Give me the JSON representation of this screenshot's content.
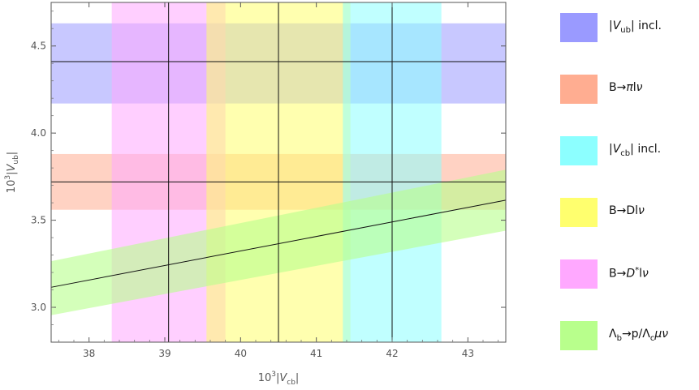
{
  "chart_data": {
    "type": "band-plot",
    "xlabel_parts": [
      "10",
      "3",
      "|V",
      "cb",
      "|"
    ],
    "ylabel_parts": [
      "10",
      "3",
      "|V",
      "ub",
      "|"
    ],
    "xlim": [
      37.5,
      43.5
    ],
    "ylim": [
      2.8,
      4.75
    ],
    "xticks": [
      38,
      39,
      40,
      41,
      42,
      43
    ],
    "yticks": [
      3.0,
      3.5,
      4.0,
      4.5
    ],
    "ytick_labels": [
      "3.0",
      "3.5",
      "4.0",
      "4.5"
    ],
    "horizontal_bands": [
      {
        "id": "vub-incl",
        "center": 4.41,
        "low": 4.17,
        "high": 4.63,
        "color": "#9a9aff"
      },
      {
        "id": "b-pi-l-nu",
        "center": 3.72,
        "low": 3.56,
        "high": 3.88,
        "color": "#ffad91"
      }
    ],
    "vertical_bands": [
      {
        "id": "b-dstar-l-nu",
        "center": 39.05,
        "low": 38.3,
        "high": 39.8,
        "color": "#ffa8ff"
      },
      {
        "id": "b-d-l-nu",
        "center": 40.5,
        "low": 39.55,
        "high": 41.45,
        "color": "#ffff6e"
      },
      {
        "id": "vcb-incl",
        "center": 42.0,
        "low": 41.35,
        "high": 42.65,
        "color": "#8cffff"
      }
    ],
    "diagonal_band": {
      "id": "lambda-b",
      "color": "#b8ff8c",
      "x": [
        37.5,
        43.5
      ],
      "center": [
        3.115,
        3.615
      ],
      "low": [
        2.955,
        3.44
      ],
      "high": [
        3.265,
        3.79
      ]
    },
    "legend": [
      {
        "color": "#9a9aff",
        "parts": [
          [
            "t",
            "|"
          ],
          [
            "i",
            "V"
          ],
          [
            "sub",
            "ub"
          ],
          [
            "t",
            "| incl."
          ]
        ]
      },
      {
        "color": "#ffad91",
        "parts": [
          [
            "t",
            "B→"
          ],
          [
            "i",
            "π"
          ],
          [
            "t",
            "l"
          ],
          [
            "i",
            "ν"
          ]
        ]
      },
      {
        "color": "#8cffff",
        "parts": [
          [
            "t",
            "|"
          ],
          [
            "i",
            "V"
          ],
          [
            "sub",
            "cb"
          ],
          [
            "t",
            "| incl."
          ]
        ]
      },
      {
        "color": "#ffff6e",
        "parts": [
          [
            "t",
            "B→Dl"
          ],
          [
            "i",
            "ν"
          ]
        ]
      },
      {
        "color": "#ffa8ff",
        "parts": [
          [
            "t",
            "B→"
          ],
          [
            "i",
            "D"
          ],
          [
            "sup",
            "*"
          ],
          [
            "t",
            "l"
          ],
          [
            "i",
            "ν"
          ]
        ]
      },
      {
        "color": "#b8ff8c",
        "parts": [
          [
            "t",
            "Λ"
          ],
          [
            "sub",
            "b"
          ],
          [
            "t",
            "→p/Λ"
          ],
          [
            "sub",
            "c"
          ],
          [
            "i",
            "μν"
          ]
        ]
      }
    ]
  }
}
